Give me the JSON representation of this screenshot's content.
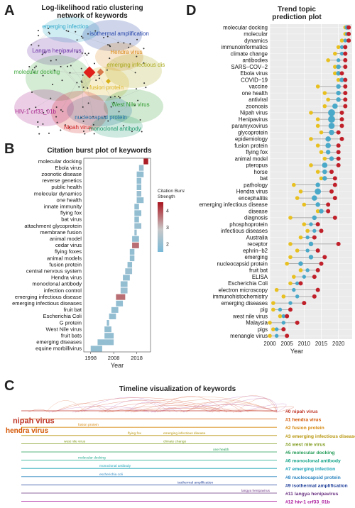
{
  "panel_a": {
    "label": "A",
    "title_line1": "Log-likelihood ratio clustering",
    "title_line2": "network of keywords",
    "clusters": [
      {
        "name": "emerging infection",
        "color": "#2aa7c9"
      },
      {
        "name": "isothermal amplification",
        "color": "#1f3fa6"
      },
      {
        "name": "Langya henipavirus",
        "color": "#6b2fa6"
      },
      {
        "name": "Hendra virus",
        "color": "#d98a1a"
      },
      {
        "name": "emerging infectious disease",
        "color": "#a8a81a"
      },
      {
        "name": "molecular docking",
        "color": "#3aa63a"
      },
      {
        "name": "fusion protein",
        "color": "#d9b21a"
      },
      {
        "name": "West Nile virus",
        "color": "#2f9a2f"
      },
      {
        "name": "HIV-1 crf33_01b",
        "color": "#a61f8a"
      },
      {
        "name": "nucleocapsid protein",
        "color": "#1f6fa6"
      },
      {
        "name": "Nipah virus",
        "color": "#d01f1f"
      },
      {
        "name": "monoclonal antibody",
        "color": "#1f9a6f"
      }
    ]
  },
  "panel_b": {
    "label": "B",
    "title": "Citation burst plot of keywords",
    "xlabel": "Year",
    "legend_title_line1": "Citation Burst",
    "legend_title_line2": "Strength",
    "legend_ticks": [
      "4",
      "3",
      "2"
    ],
    "chart_data": {
      "type": "bar",
      "x_range": [
        1995,
        2024
      ],
      "xticks": [
        1998,
        2008,
        2018
      ],
      "strength_range": [
        1.5,
        4.5
      ],
      "bursts": [
        {
          "keyword": "molecular docking",
          "begin": 2021,
          "end": 2023,
          "strength": 4.4
        },
        {
          "keyword": "Ebola virus",
          "begin": 2019,
          "end": 2021,
          "strength": 2.0
        },
        {
          "keyword": "zoonotic disease",
          "begin": 2018,
          "end": 2021,
          "strength": 1.9
        },
        {
          "keyword": "reverse genetics",
          "begin": 2018,
          "end": 2020,
          "strength": 1.9
        },
        {
          "keyword": "public health",
          "begin": 2018,
          "end": 2020,
          "strength": 1.9
        },
        {
          "keyword": "molecular dynamics",
          "begin": 2018,
          "end": 2020,
          "strength": 2.0
        },
        {
          "keyword": "one health",
          "begin": 2018,
          "end": 2021,
          "strength": 1.9
        },
        {
          "keyword": "innate immunity",
          "begin": 2017,
          "end": 2019,
          "strength": 1.9
        },
        {
          "keyword": "flying fox",
          "begin": 2017,
          "end": 2020,
          "strength": 1.9
        },
        {
          "keyword": "bat virus",
          "begin": 2017,
          "end": 2019,
          "strength": 1.9
        },
        {
          "keyword": "attachment glycoprotein",
          "begin": 2017,
          "end": 2020,
          "strength": 2.0
        },
        {
          "keyword": "membrane fusion",
          "begin": 2017,
          "end": 2018,
          "strength": 2.0
        },
        {
          "keyword": "animal model",
          "begin": 2016,
          "end": 2019,
          "strength": 1.9
        },
        {
          "keyword": "cedar virus",
          "begin": 2016,
          "end": 2019,
          "strength": 3.6
        },
        {
          "keyword": "flying foxes",
          "begin": 2015,
          "end": 2017,
          "strength": 1.9
        },
        {
          "keyword": "animal models",
          "begin": 2015,
          "end": 2017,
          "strength": 1.9
        },
        {
          "keyword": "fusion protein",
          "begin": 2014,
          "end": 2016,
          "strength": 1.9
        },
        {
          "keyword": "central nervous system",
          "begin": 2013,
          "end": 2016,
          "strength": 2.0
        },
        {
          "keyword": "Hendra virus",
          "begin": 2012,
          "end": 2015,
          "strength": 1.9
        },
        {
          "keyword": "monoclonal antibody",
          "begin": 2011,
          "end": 2014,
          "strength": 1.9
        },
        {
          "keyword": "infection control",
          "begin": 2011,
          "end": 2014,
          "strength": 2.0
        },
        {
          "keyword": "emerging infectious disease",
          "begin": 2009,
          "end": 2013,
          "strength": 3.6
        },
        {
          "keyword": "emerging infectious diseases",
          "begin": 2009,
          "end": 2012,
          "strength": 1.9
        },
        {
          "keyword": "fruit bat",
          "begin": 2007,
          "end": 2010,
          "strength": 1.9
        },
        {
          "keyword": "Escherichia Coli",
          "begin": 2006,
          "end": 2009,
          "strength": 1.9
        },
        {
          "keyword": "G protein",
          "begin": 2005,
          "end": 2006,
          "strength": 1.9
        },
        {
          "keyword": "West Nile virus",
          "begin": 2004,
          "end": 2007,
          "strength": 1.9
        },
        {
          "keyword": "fruit bats",
          "begin": 2004,
          "end": 2008,
          "strength": 1.9
        },
        {
          "keyword": "emerging diseases",
          "begin": 2001,
          "end": 2008,
          "strength": 1.9
        },
        {
          "keyword": "equine morbillivirus",
          "begin": 1998,
          "end": 2003,
          "strength": 1.9
        }
      ]
    }
  },
  "panel_c": {
    "label": "C",
    "title": "Timeline visualization of keywords",
    "clusters": [
      {
        "label": "#0 nipah virus",
        "color": "#c0392b"
      },
      {
        "label": "#1 hendra virus",
        "color": "#d35400"
      },
      {
        "label": "#2 fusion protein",
        "color": "#d68910"
      },
      {
        "label": "#3 emerging infectious disease",
        "color": "#b7950b"
      },
      {
        "label": "#4 west nile virus",
        "color": "#7d9a1b"
      },
      {
        "label": "#5 molecular docking",
        "color": "#239b56"
      },
      {
        "label": "#6 monoclonal antibody",
        "color": "#17a589"
      },
      {
        "label": "#7 emerging infection",
        "color": "#1aa3b8"
      },
      {
        "label": "#8 nucleocapsid protein",
        "color": "#2e86c1"
      },
      {
        "label": "#9 isothermal amplification",
        "color": "#1f3f9a"
      },
      {
        "label": "#11 langya henipavirus",
        "color": "#6c3483"
      },
      {
        "label": "#12 hiv-1 crf33_01b",
        "color": "#a9179a"
      }
    ],
    "big_terms": [
      "nipah virus",
      "hendra virus"
    ],
    "small_terms": [
      "fusion protein",
      "emerging infectious disease",
      "west nile virus",
      "flying fox",
      "climate change",
      "one health",
      "molecular docking",
      "monoclonal antibody",
      "escherichia coli",
      "isothermal amplification",
      "langya henipavirus"
    ]
  },
  "panel_d": {
    "label": "D",
    "title_line1": "Trend topic",
    "title_line2": "prediction plot",
    "xlabel": "Year",
    "chart_data": {
      "type": "scatter",
      "x_range": [
        2000,
        2024
      ],
      "xticks": [
        2000,
        2005,
        2010,
        2015,
        2020
      ],
      "colors": {
        "q1": "#e8c020",
        "median": "#4aa8c8",
        "q3": "#c0202a"
      },
      "terms": [
        {
          "term": "molecular docking",
          "q1": 2022,
          "median": 2022.5,
          "q3": 2023,
          "n": 3
        },
        {
          "term": "molecular",
          "q1": 2022,
          "median": 2022.5,
          "q3": 2023,
          "n": 2
        },
        {
          "term": "dynamics",
          "q1": 2021,
          "median": 2022,
          "q3": 2023,
          "n": 2
        },
        {
          "term": "immunoinformatics",
          "q1": 2020,
          "median": 2021,
          "q3": 2022,
          "n": 2
        },
        {
          "term": "climate change",
          "q1": 2019,
          "median": 2021,
          "q3": 2022,
          "n": 2
        },
        {
          "term": "antibodies",
          "q1": 2017,
          "median": 2020,
          "q3": 2022,
          "n": 2
        },
        {
          "term": "SARS−COV−2",
          "q1": 2019,
          "median": 2020,
          "q3": 2022,
          "n": 3
        },
        {
          "term": "Ebola virus",
          "q1": 2019,
          "median": 2020,
          "q3": 2021,
          "n": 3
        },
        {
          "term": "COVID−19",
          "q1": 2020,
          "median": 2021,
          "q3": 2022,
          "n": 3
        },
        {
          "term": "vaccine",
          "q1": 2014,
          "median": 2020,
          "q3": 2022,
          "n": 3
        },
        {
          "term": "one health",
          "q1": 2016,
          "median": 2020,
          "q3": 2022,
          "n": 3
        },
        {
          "term": "antiviral",
          "q1": 2017,
          "median": 2020,
          "q3": 2022,
          "n": 3
        },
        {
          "term": "zoonosis",
          "q1": 2016,
          "median": 2019,
          "q3": 2022,
          "n": 4
        },
        {
          "term": "Nipah virus",
          "q1": 2012,
          "median": 2018,
          "q3": 2021,
          "n": 6
        },
        {
          "term": "Henipavirus",
          "q1": 2014,
          "median": 2018,
          "q3": 2021,
          "n": 6
        },
        {
          "term": "paramyxovirus",
          "q1": 2014,
          "median": 2018,
          "q3": 2021,
          "n": 5
        },
        {
          "term": "glycoprotein",
          "q1": 2015,
          "median": 2018,
          "q3": 2020,
          "n": 4
        },
        {
          "term": "epidemiology",
          "q1": 2012,
          "median": 2017,
          "q3": 2021,
          "n": 4
        },
        {
          "term": "fusion protein",
          "q1": 2014,
          "median": 2017,
          "q3": 2020,
          "n": 4
        },
        {
          "term": "flying fox",
          "q1": 2015,
          "median": 2017,
          "q3": 2020,
          "n": 3
        },
        {
          "term": "animal model",
          "q1": 2016,
          "median": 2018,
          "q3": 2020,
          "n": 3
        },
        {
          "term": "pteropus",
          "q1": 2012,
          "median": 2016,
          "q3": 2020,
          "n": 4
        },
        {
          "term": "horse",
          "q1": 2014,
          "median": 2016,
          "q3": 2018,
          "n": 3
        },
        {
          "term": "bat",
          "q1": 2015,
          "median": 2016,
          "q3": 2019,
          "n": 3
        },
        {
          "term": "pathology",
          "q1": 2007,
          "median": 2014,
          "q3": 2019,
          "n": 3
        },
        {
          "term": "Hendra virus",
          "q1": 2009,
          "median": 2014,
          "q3": 2018,
          "n": 5
        },
        {
          "term": "encephalitis",
          "q1": 2008,
          "median": 2013,
          "q3": 2019,
          "n": 4
        },
        {
          "term": "emerging infectious disease",
          "q1": 2010,
          "median": 2014,
          "q3": 2017,
          "n": 3
        },
        {
          "term": "disease",
          "q1": 2014,
          "median": 2015,
          "q3": 2017,
          "n": 3
        },
        {
          "term": "diagnosis",
          "q1": 2006,
          "median": 2013,
          "q3": 2019,
          "n": 3
        },
        {
          "term": "phosphoprotein",
          "q1": 2010,
          "median": 2012,
          "q3": 2014,
          "n": 2
        },
        {
          "term": "infectious diseases",
          "q1": 2011,
          "median": 2013,
          "q3": 2015,
          "n": 2
        },
        {
          "term": "Australia",
          "q1": 2009,
          "median": 2011,
          "q3": 2013,
          "n": 2
        },
        {
          "term": "receptor",
          "q1": 2006,
          "median": 2012,
          "q3": 2020,
          "n": 3
        },
        {
          "term": "ephrin−b2",
          "q1": 2008,
          "median": 2011,
          "q3": 2014,
          "n": 2
        },
        {
          "term": "emerging",
          "q1": 2006,
          "median": 2012,
          "q3": 2016,
          "n": 3
        },
        {
          "term": "nucleocapsid protein",
          "q1": 2005,
          "median": 2009,
          "q3": 2015,
          "n": 3
        },
        {
          "term": "fruit bat",
          "q1": 2009,
          "median": 2011,
          "q3": 2014,
          "n": 2
        },
        {
          "term": "ELISA",
          "q1": 2007,
          "median": 2010,
          "q3": 2013,
          "n": 2
        },
        {
          "term": "Escherichia Coli",
          "q1": 2006,
          "median": 2008,
          "q3": 2009,
          "n": 2
        },
        {
          "term": "electron microscopy",
          "q1": 2002,
          "median": 2007,
          "q3": 2014,
          "n": 2
        },
        {
          "term": "immunohistochemistry",
          "q1": 2004,
          "median": 2008,
          "q3": 2013,
          "n": 2
        },
        {
          "term": "emerging diseases",
          "q1": 2001,
          "median": 2006,
          "q3": 2010,
          "n": 2
        },
        {
          "term": "pig",
          "q1": 2001,
          "median": 2003,
          "q3": 2006,
          "n": 2
        },
        {
          "term": "west nile virus",
          "q1": 2003,
          "median": 2004,
          "q3": 2005,
          "n": 2
        },
        {
          "term": "Malaysia",
          "q1": 2000,
          "median": 2004,
          "q3": 2008,
          "n": 2
        },
        {
          "term": "pigs",
          "q1": 2001,
          "median": 2002,
          "q3": 2004,
          "n": 2
        },
        {
          "term": "menangle virus",
          "q1": 2000,
          "median": 2002,
          "q3": 2005,
          "n": 2
        }
      ]
    }
  }
}
